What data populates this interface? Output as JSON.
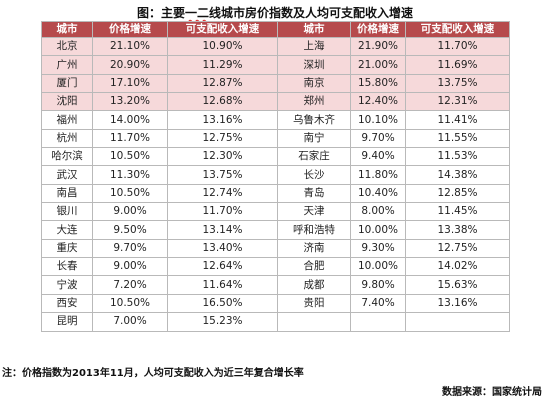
{
  "title": {
    "prefix": "图：主要",
    "squiggle": "一二",
    "rest": "线城市房价指数及人均可支配收入增速"
  },
  "table": {
    "headers": [
      "城市",
      "价格增速",
      "可支配收入增速",
      "城市",
      "价格增速",
      "可支配收入增速"
    ],
    "rows": [
      [
        "北京",
        "21.10%",
        "10.90%",
        "上海",
        "21.90%",
        "11.70%"
      ],
      [
        "广州",
        "20.90%",
        "11.29%",
        "深圳",
        "21.00%",
        "11.69%"
      ],
      [
        "厦门",
        "17.10%",
        "12.87%",
        "南京",
        "15.80%",
        "13.75%"
      ],
      [
        "沈阳",
        "13.20%",
        "12.68%",
        "郑州",
        "12.40%",
        "12.31%"
      ],
      [
        "福州",
        "14.00%",
        "13.16%",
        "乌鲁木齐",
        "10.10%",
        "11.41%"
      ],
      [
        "杭州",
        "11.70%",
        "12.75%",
        "南宁",
        "9.70%",
        "11.55%"
      ],
      [
        "哈尔滨",
        "10.50%",
        "12.30%",
        "石家庄",
        "9.40%",
        "11.53%"
      ],
      [
        "武汉",
        "11.30%",
        "13.75%",
        "长沙",
        "11.80%",
        "14.38%"
      ],
      [
        "南昌",
        "10.50%",
        "12.74%",
        "青岛",
        "10.40%",
        "12.85%"
      ],
      [
        "银川",
        "9.00%",
        "11.70%",
        "天津",
        "8.00%",
        "11.45%"
      ],
      [
        "大连",
        "9.50%",
        "13.14%",
        "呼和浩特",
        "10.00%",
        "13.38%"
      ],
      [
        "重庆",
        "9.70%",
        "13.40%",
        "济南",
        "9.30%",
        "12.75%"
      ],
      [
        "长春",
        "9.00%",
        "12.64%",
        "合肥",
        "10.00%",
        "14.02%"
      ],
      [
        "宁波",
        "7.20%",
        "11.64%",
        "成都",
        "9.80%",
        "15.63%"
      ],
      [
        "西安",
        "10.50%",
        "16.50%",
        "贵阳",
        "7.40%",
        "13.16%"
      ],
      [
        "昆明",
        "7.00%",
        "15.23%",
        "",
        "",
        ""
      ]
    ],
    "highlight_row_count": 4,
    "header_color": "#b64a4c",
    "highlight_color": "#f6d9da"
  },
  "note": "注：价格指数为2013年11月，人均可支配收入为近三年复合增长率",
  "source": "数据来源：国家统计局"
}
